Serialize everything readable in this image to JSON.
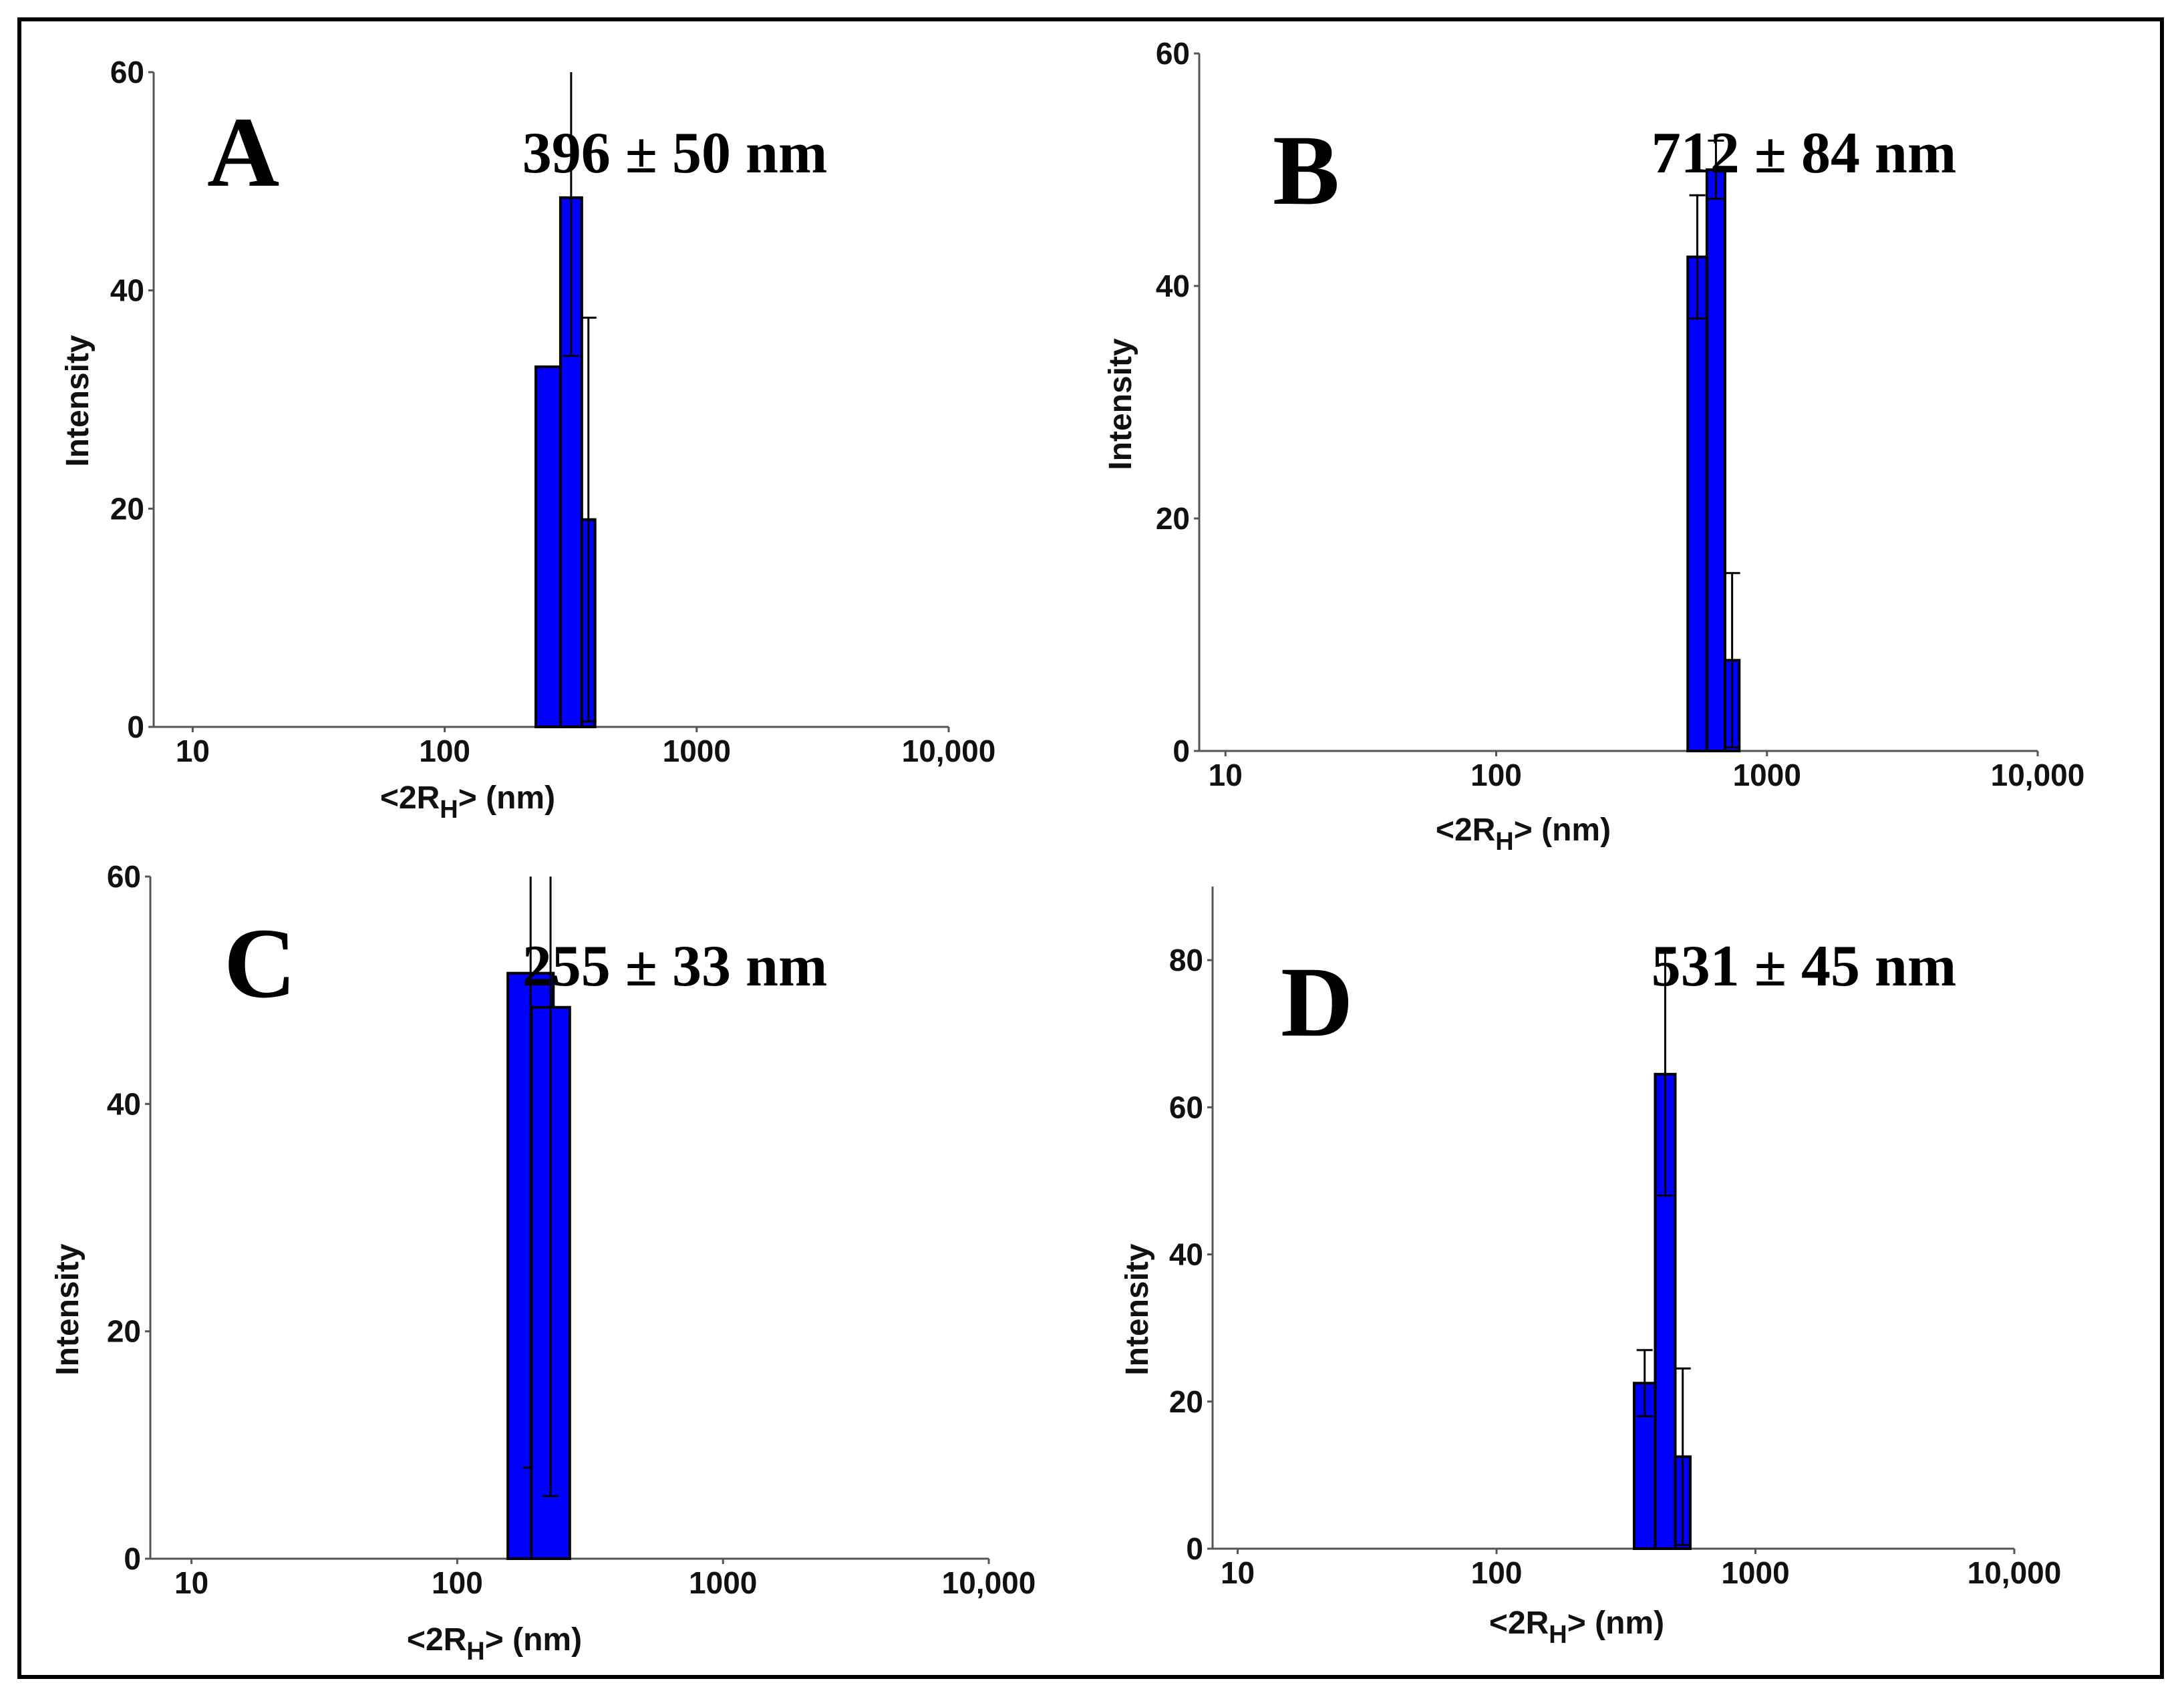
{
  "chart_data": [
    {
      "type": "bar",
      "panel": "A",
      "annotation": "396 ± 50 nm",
      "ylabel": "Intensity",
      "xlabel_main": "<2R",
      "xlabel_sub": "H",
      "xlabel_tail": "> (nm)",
      "xscale": "log",
      "xlim": [
        7,
        10000
      ],
      "ylim": [
        0,
        60
      ],
      "xticks": [
        {
          "value": 10,
          "label": "10"
        },
        {
          "value": 100,
          "label": "100"
        },
        {
          "value": 1000,
          "label": "1000"
        },
        {
          "value": 10000,
          "label": "10,000"
        }
      ],
      "yticks": [
        {
          "value": 0,
          "label": "0"
        },
        {
          "value": 20,
          "label": "20"
        },
        {
          "value": 40,
          "label": "40"
        },
        {
          "value": 60,
          "label": "60"
        }
      ],
      "bars": [
        {
          "x0": 230,
          "x1": 288,
          "value": 33,
          "err": 0
        },
        {
          "x0": 288,
          "x1": 350,
          "value": 48.5,
          "err": 14.5
        },
        {
          "x0": 350,
          "x1": 395,
          "value": 19,
          "err": 18.5
        }
      ],
      "bar_color": "#0000ff"
    },
    {
      "type": "bar",
      "panel": "B",
      "annotation": "712 ± 84 nm",
      "ylabel": "Intensity",
      "xlabel_main": "<2R",
      "xlabel_sub": "H",
      "xlabel_tail": "> (nm)",
      "xscale": "log",
      "xlim": [
        8,
        10000
      ],
      "ylim": [
        0,
        60
      ],
      "xticks": [
        {
          "value": 10,
          "label": "10"
        },
        {
          "value": 100,
          "label": "100"
        },
        {
          "value": 1000,
          "label": "1000"
        },
        {
          "value": 10000,
          "label": "10,000"
        }
      ],
      "yticks": [
        {
          "value": 0,
          "label": "0"
        },
        {
          "value": 20,
          "label": "20"
        },
        {
          "value": 40,
          "label": "40"
        },
        {
          "value": 60,
          "label": "60"
        }
      ],
      "bars": [
        {
          "x0": 510,
          "x1": 600,
          "value": 42.5,
          "err": 5.3
        },
        {
          "x0": 600,
          "x1": 700,
          "value": 50,
          "err": 2.5
        },
        {
          "x0": 700,
          "x1": 790,
          "value": 7.8,
          "err": 7.5
        }
      ],
      "bar_color": "#0000ff"
    },
    {
      "type": "bar",
      "panel": "C",
      "annotation": "255 ± 33 nm",
      "ylabel": "Intensity",
      "xlabel_main": "<2R",
      "xlabel_sub": "H",
      "xlabel_tail": "> (nm)",
      "xscale": "log",
      "xlim": [
        7,
        10000
      ],
      "ylim": [
        0,
        60
      ],
      "xticks": [
        {
          "value": 10,
          "label": "10"
        },
        {
          "value": 100,
          "label": "100"
        },
        {
          "value": 1000,
          "label": "1000"
        },
        {
          "value": 10000,
          "label": "10,000"
        }
      ],
      "yticks": [
        {
          "value": 0,
          "label": "0"
        },
        {
          "value": 20,
          "label": "20"
        },
        {
          "value": 40,
          "label": "40"
        },
        {
          "value": 60,
          "label": "60"
        }
      ],
      "bars": [
        {
          "x0": 155,
          "x1": 230,
          "value": 51.5,
          "err": 43.5
        },
        {
          "x0": 190,
          "x1": 265,
          "value": 48.5,
          "err": 43
        }
      ],
      "bar_color": "#0000ff"
    },
    {
      "type": "bar",
      "panel": "D",
      "annotation": "531 ± 45 nm",
      "ylabel": "Intensity",
      "xlabel_main": "<2R",
      "xlabel_sub": "H",
      "xlabel_tail": "> (nm)",
      "xscale": "log",
      "xlim": [
        8,
        10000
      ],
      "ylim": [
        0,
        90
      ],
      "xticks": [
        {
          "value": 10,
          "label": "10"
        },
        {
          "value": 100,
          "label": "100"
        },
        {
          "value": 1000,
          "label": "1000"
        },
        {
          "value": 10000,
          "label": "10,000"
        }
      ],
      "yticks": [
        {
          "value": 0,
          "label": "0"
        },
        {
          "value": 20,
          "label": "20"
        },
        {
          "value": 40,
          "label": "40"
        },
        {
          "value": 60,
          "label": "60"
        },
        {
          "value": 80,
          "label": "80"
        }
      ],
      "bars": [
        {
          "x0": 340,
          "x1": 410,
          "value": 22.5,
          "err": 4.5
        },
        {
          "x0": 410,
          "x1": 490,
          "value": 64.5,
          "err": 16.5
        },
        {
          "x0": 490,
          "x1": 560,
          "value": 12.5,
          "err": 12
        }
      ],
      "bar_color": "#0000ff"
    }
  ]
}
